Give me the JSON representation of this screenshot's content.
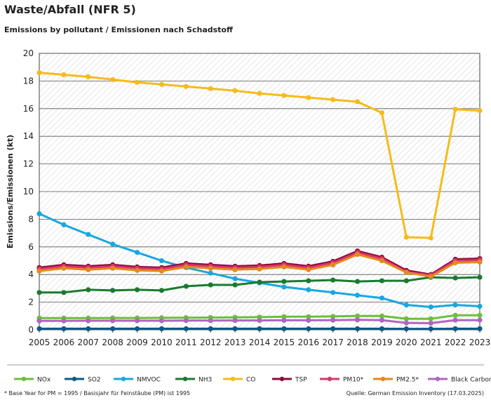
{
  "title": "Waste/Abfall (NFR 5)",
  "subtitle": "Emissions by pollutant / Emissionen nach Schadstoff",
  "footnote": "* Base Year for PM = 1995 / Basisjahr für Feinstäube (PM) ist 1995",
  "source": "Quelle: German Emission Inventory (17.03.2025)",
  "chart_data": {
    "type": "line",
    "ylabel": "Emissions/Emissionen (kt)",
    "ylim": [
      0,
      20
    ],
    "yticks": [
      0,
      2,
      4,
      6,
      8,
      10,
      12,
      14,
      16,
      18,
      20
    ],
    "x": [
      "2005",
      "2006",
      "2007",
      "2008",
      "2009",
      "2010",
      "2011",
      "2012",
      "2013",
      "2014",
      "2015",
      "2016",
      "2017",
      "2018",
      "2019",
      "2020",
      "2021",
      "2022",
      "2023"
    ],
    "legend_position": "bottom",
    "grid": true,
    "series": [
      {
        "name": "NOx",
        "color": "#6abf3c",
        "values": [
          0.85,
          0.85,
          0.85,
          0.86,
          0.86,
          0.87,
          0.88,
          0.89,
          0.9,
          0.92,
          0.95,
          0.95,
          0.97,
          1.0,
          1.0,
          0.8,
          0.8,
          1.05,
          1.05
        ]
      },
      {
        "name": "SO2",
        "color": "#0c5a8a",
        "values": [
          0.08,
          0.08,
          0.08,
          0.08,
          0.08,
          0.08,
          0.08,
          0.08,
          0.08,
          0.08,
          0.08,
          0.08,
          0.08,
          0.08,
          0.08,
          0.07,
          0.07,
          0.08,
          0.08
        ]
      },
      {
        "name": "NMVOC",
        "color": "#19a7e0",
        "values": [
          8.4,
          7.6,
          6.9,
          6.2,
          5.6,
          5.0,
          4.5,
          4.1,
          3.7,
          3.4,
          3.1,
          2.9,
          2.7,
          2.5,
          2.3,
          1.8,
          1.65,
          1.8,
          1.7
        ]
      },
      {
        "name": "NH3",
        "color": "#1a7a30",
        "values": [
          2.7,
          2.7,
          2.9,
          2.85,
          2.9,
          2.85,
          3.15,
          3.25,
          3.25,
          3.45,
          3.5,
          3.55,
          3.6,
          3.5,
          3.55,
          3.55,
          3.8,
          3.75,
          3.8
        ]
      },
      {
        "name": "CO",
        "color": "#f5bb1c",
        "values": [
          18.6,
          18.45,
          18.3,
          18.1,
          17.9,
          17.75,
          17.6,
          17.45,
          17.3,
          17.1,
          16.95,
          16.8,
          16.65,
          16.5,
          15.7,
          6.7,
          6.65,
          15.95,
          15.85
        ]
      },
      {
        "name": "TSP",
        "color": "#8b0a3a",
        "values": [
          4.5,
          4.7,
          4.6,
          4.7,
          4.55,
          4.5,
          4.8,
          4.7,
          4.6,
          4.65,
          4.8,
          4.6,
          4.95,
          5.7,
          5.25,
          4.3,
          4.0,
          5.1,
          5.15
        ]
      },
      {
        "name": "PM10*",
        "color": "#d9366b",
        "values": [
          4.4,
          4.6,
          4.5,
          4.6,
          4.45,
          4.4,
          4.7,
          4.6,
          4.5,
          4.55,
          4.7,
          4.5,
          4.85,
          5.6,
          5.15,
          4.2,
          3.95,
          5.0,
          5.05
        ]
      },
      {
        "name": "PM2.5*",
        "color": "#e38a1a",
        "values": [
          4.25,
          4.45,
          4.35,
          4.45,
          4.3,
          4.25,
          4.55,
          4.45,
          4.35,
          4.4,
          4.55,
          4.35,
          4.7,
          5.45,
          5.0,
          4.15,
          3.85,
          4.85,
          4.9
        ]
      },
      {
        "name": "Black Carbon",
        "color": "#b066c0",
        "values": [
          0.65,
          0.65,
          0.66,
          0.66,
          0.66,
          0.66,
          0.67,
          0.67,
          0.68,
          0.68,
          0.69,
          0.69,
          0.7,
          0.72,
          0.7,
          0.5,
          0.48,
          0.7,
          0.7
        ]
      }
    ]
  }
}
